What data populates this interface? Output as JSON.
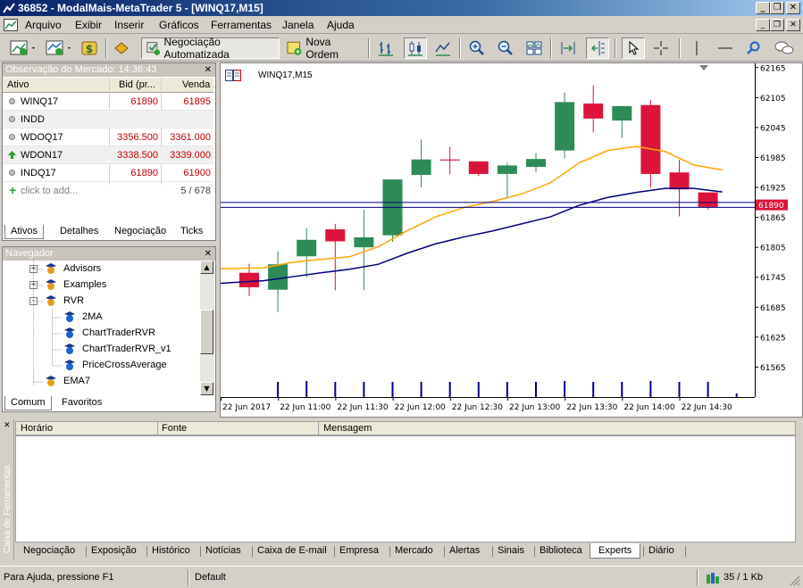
{
  "window": {
    "title": "36852 - ModalMais-MetaTrader 5 - [WINQ17,M15]",
    "controls": [
      "minimize",
      "restore",
      "close"
    ]
  },
  "menu": {
    "items": [
      "Arquivo",
      "Exibir",
      "Inserir",
      "Gráficos",
      "Ferramentas",
      "Janela",
      "Ajuda"
    ]
  },
  "toolbar": {
    "auto_trading_label": "Negociação Automatizada",
    "new_order_label": "Nova Ordem"
  },
  "market_watch": {
    "title": "Observação do Mercado: 14:36:43",
    "columns": [
      "Ativo",
      "Bid (pr...",
      "Venda"
    ],
    "rows": [
      {
        "symbol": "WINQ17",
        "bid": "61890",
        "ask": "61895",
        "icon": "dot-icon"
      },
      {
        "symbol": "INDD",
        "bid": "",
        "ask": "",
        "icon": "dot-icon"
      },
      {
        "symbol": "WDOQ17",
        "bid": "3356.500",
        "ask": "3361.000",
        "icon": "dot-icon"
      },
      {
        "symbol": "WDON17",
        "bid": "3338.500",
        "ask": "3339.000",
        "icon": "up-arrow-icon"
      },
      {
        "symbol": "INDQ17",
        "bid": "61890",
        "ask": "61900",
        "icon": "dot-icon"
      }
    ],
    "add_label": "click to add...",
    "count": "5 / 678",
    "tabs": [
      "Ativos",
      "Detalhes",
      "Negociação",
      "Ticks"
    ]
  },
  "navigator": {
    "title": "Navegador",
    "items": [
      {
        "label": "Advisors",
        "level": 1,
        "expander": "+"
      },
      {
        "label": "Examples",
        "level": 1,
        "expander": "+"
      },
      {
        "label": "RVR",
        "level": 1,
        "expander": "-"
      },
      {
        "label": "2MA",
        "level": 2,
        "expander": ""
      },
      {
        "label": "ChartTraderRVR",
        "level": 2,
        "expander": ""
      },
      {
        "label": "ChartTraderRVR_v1",
        "level": 2,
        "expander": ""
      },
      {
        "label": "PriceCrossAverage",
        "level": 2,
        "expander": ""
      },
      {
        "label": "EMA7",
        "level": 1,
        "expander": ""
      }
    ],
    "tabs": [
      "Comum",
      "Favoritos"
    ]
  },
  "chart_data": {
    "type": "candlestick",
    "title": "WINQ17,M15",
    "price_labels": [
      "62165",
      "62105",
      "62045",
      "61985",
      "61925",
      "61865",
      "61805",
      "61745",
      "61685",
      "61625",
      "61565"
    ],
    "current_price": "61890",
    "time_labels": [
      "22 Jun 2017",
      "22 Jun 11:00",
      "22 Jun 11:30",
      "22 Jun 12:00",
      "22 Jun 12:30",
      "22 Jun 13:00",
      "22 Jun 13:30",
      "22 Jun 14:00",
      "22 Jun 14:30"
    ],
    "ylim": [
      61505,
      62170
    ],
    "up_color": "#2e8b57",
    "down_color": "#dc143c",
    "candles": [
      {
        "o": 61754,
        "h": 61772,
        "l": 61707,
        "c": 61725
      },
      {
        "o": 61720,
        "h": 61797,
        "l": 61675,
        "c": 61771
      },
      {
        "o": 61787,
        "h": 61843,
        "l": 61745,
        "c": 61820
      },
      {
        "o": 61841,
        "h": 61852,
        "l": 61719,
        "c": 61817
      },
      {
        "o": 61805,
        "h": 61880,
        "l": 61719,
        "c": 61825
      },
      {
        "o": 61829,
        "h": 61939,
        "l": 61816,
        "c": 61941
      },
      {
        "o": 61950,
        "h": 62021,
        "l": 61925,
        "c": 61981
      },
      {
        "o": 61981,
        "h": 62006,
        "l": 61951,
        "c": 61979
      },
      {
        "o": 61977,
        "h": 61977,
        "l": 61948,
        "c": 61952
      },
      {
        "o": 61952,
        "h": 61974,
        "l": 61906,
        "c": 61969
      },
      {
        "o": 61966,
        "h": 61994,
        "l": 61955,
        "c": 61982
      },
      {
        "o": 61999,
        "h": 62115,
        "l": 61983,
        "c": 62096
      },
      {
        "o": 62093,
        "h": 62130,
        "l": 62035,
        "c": 62063
      },
      {
        "o": 62059,
        "h": 62088,
        "l": 62024,
        "c": 62088
      },
      {
        "o": 62090,
        "h": 62100,
        "l": 61925,
        "c": 61952
      },
      {
        "o": 61955,
        "h": 61980,
        "l": 61867,
        "c": 61921
      },
      {
        "o": 61915,
        "h": 61915,
        "l": 61880,
        "c": 61886
      }
    ],
    "ma_fast": [
      61762,
      61764,
      61775,
      61781,
      61786,
      61806,
      61838,
      61866,
      61885,
      61897,
      61912,
      61934,
      61974,
      61999,
      62007,
      61997,
      61970,
      61960
    ],
    "ma_slow": [
      61733,
      61738,
      61746,
      61754,
      61761,
      61771,
      61793,
      61812,
      61826,
      61838,
      61852,
      61866,
      61889,
      61905,
      61915,
      61923,
      61923,
      61916
    ],
    "volumes": [
      0.0,
      0.85,
      0.9,
      0.85,
      0.85,
      0.85,
      0.85,
      0.85,
      0.85,
      0.85,
      0.85,
      0.9,
      0.85,
      0.85,
      0.9,
      0.85,
      0.85,
      0.2
    ],
    "hlines": [
      61895,
      61885
    ],
    "colors": {
      "ma_fast": "#ffa500",
      "ma_slow": "#000080",
      "volume": "#00008b",
      "price_line": "#000080",
      "price_label_bg": "#dc143c"
    }
  },
  "toolbox": {
    "side_label": "Caixa de Ferramentas",
    "columns": [
      "Horário",
      "Fonte",
      "Mensagem"
    ],
    "tabs": [
      "Negociação",
      "Exposição",
      "Histórico",
      "Notícias",
      "Caixa de E-mail",
      "Empresa",
      "Mercado",
      "Alertas",
      "Sinais",
      "Biblioteca",
      "Experts",
      "Diário"
    ],
    "active_tab": "Experts"
  },
  "status": {
    "help": "Para Ajuda, pressione F1",
    "profile": "Default",
    "traffic": "35 / 1 Kb"
  }
}
